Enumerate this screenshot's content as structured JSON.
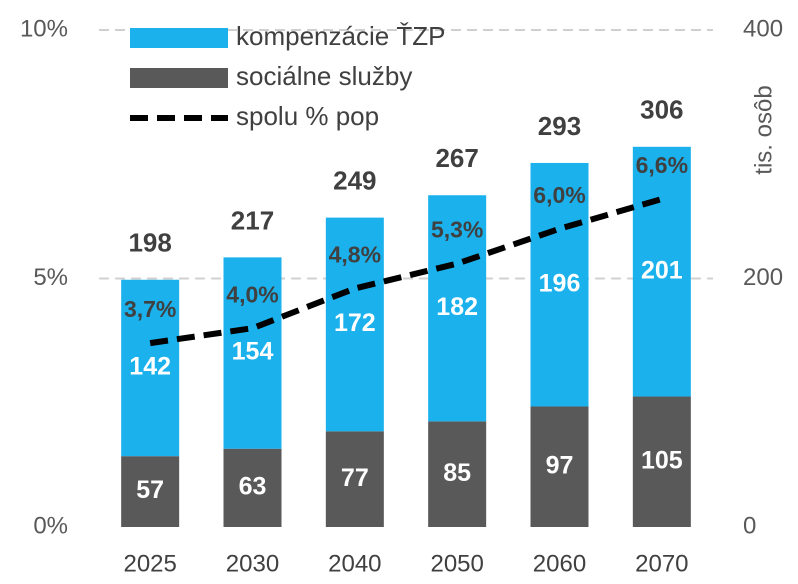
{
  "chart_data": {
    "type": "bar",
    "stacked": true,
    "categories": [
      "2025",
      "2030",
      "2040",
      "2050",
      "2060",
      "2070"
    ],
    "series": [
      {
        "name": "kompenzácie ŤZP",
        "color": "#1ab1ec",
        "axis": "y2",
        "values": [
          142,
          154,
          172,
          182,
          196,
          201
        ],
        "stack_order": 2
      },
      {
        "name": "sociálne služby",
        "color": "#595959",
        "axis": "y2",
        "values": [
          57,
          63,
          77,
          85,
          97,
          105
        ],
        "stack_order": 1
      },
      {
        "name": "spolu % pop",
        "color": "#000000",
        "type": "line",
        "dashed": true,
        "axis": "y",
        "values": [
          3.7,
          4.0,
          4.8,
          5.3,
          6.0,
          6.6
        ],
        "value_labels": [
          "3,7%",
          "4,0%",
          "4,8%",
          "5,3%",
          "6,0%",
          "6,6%"
        ]
      }
    ],
    "totals": [
      198,
      217,
      249,
      267,
      293,
      306
    ],
    "ylim": [
      0,
      10
    ],
    "yticks": [
      {
        "value": 0,
        "label": "0%"
      },
      {
        "value": 5,
        "label": "5%"
      },
      {
        "value": 10,
        "label": "10%"
      }
    ],
    "y2lim": [
      0,
      400
    ],
    "y2ticks": [
      0,
      200,
      400
    ],
    "y2label": "tis. osôb",
    "grid": true,
    "legend": "top-left"
  }
}
